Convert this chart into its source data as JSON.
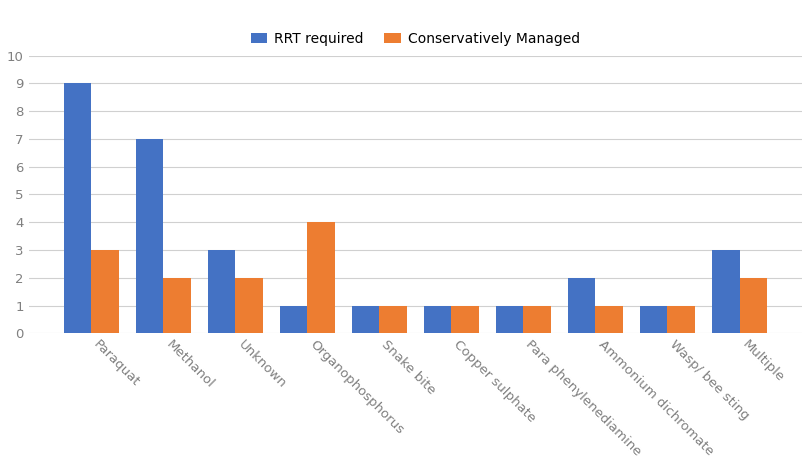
{
  "categories": [
    "Paraquat",
    "Methanol",
    "Unknown",
    "Organophosphorus",
    "Snake bite",
    "Copper sulphate",
    "Para phenylenediamine",
    "Ammonium dichromate",
    "Wasp/ bee sting",
    "Multiple"
  ],
  "rrt_required": [
    9,
    7,
    3,
    1,
    1,
    1,
    1,
    2,
    1,
    3
  ],
  "conservatively_managed": [
    3,
    2,
    2,
    4,
    1,
    1,
    1,
    1,
    1,
    2
  ],
  "bar_color_rrt": "#4472C4",
  "bar_color_cm": "#ED7D31",
  "legend_labels": [
    "RRT required",
    "Conservatively Managed"
  ],
  "ylim": [
    0,
    10
  ],
  "yticks": [
    0,
    1,
    2,
    3,
    4,
    5,
    6,
    7,
    8,
    9,
    10
  ],
  "background_color": "#ffffff",
  "grid_color": "#d0d0d0",
  "bar_width": 0.38,
  "tick_label_color": "#808080",
  "tick_label_fontsize": 9.5
}
